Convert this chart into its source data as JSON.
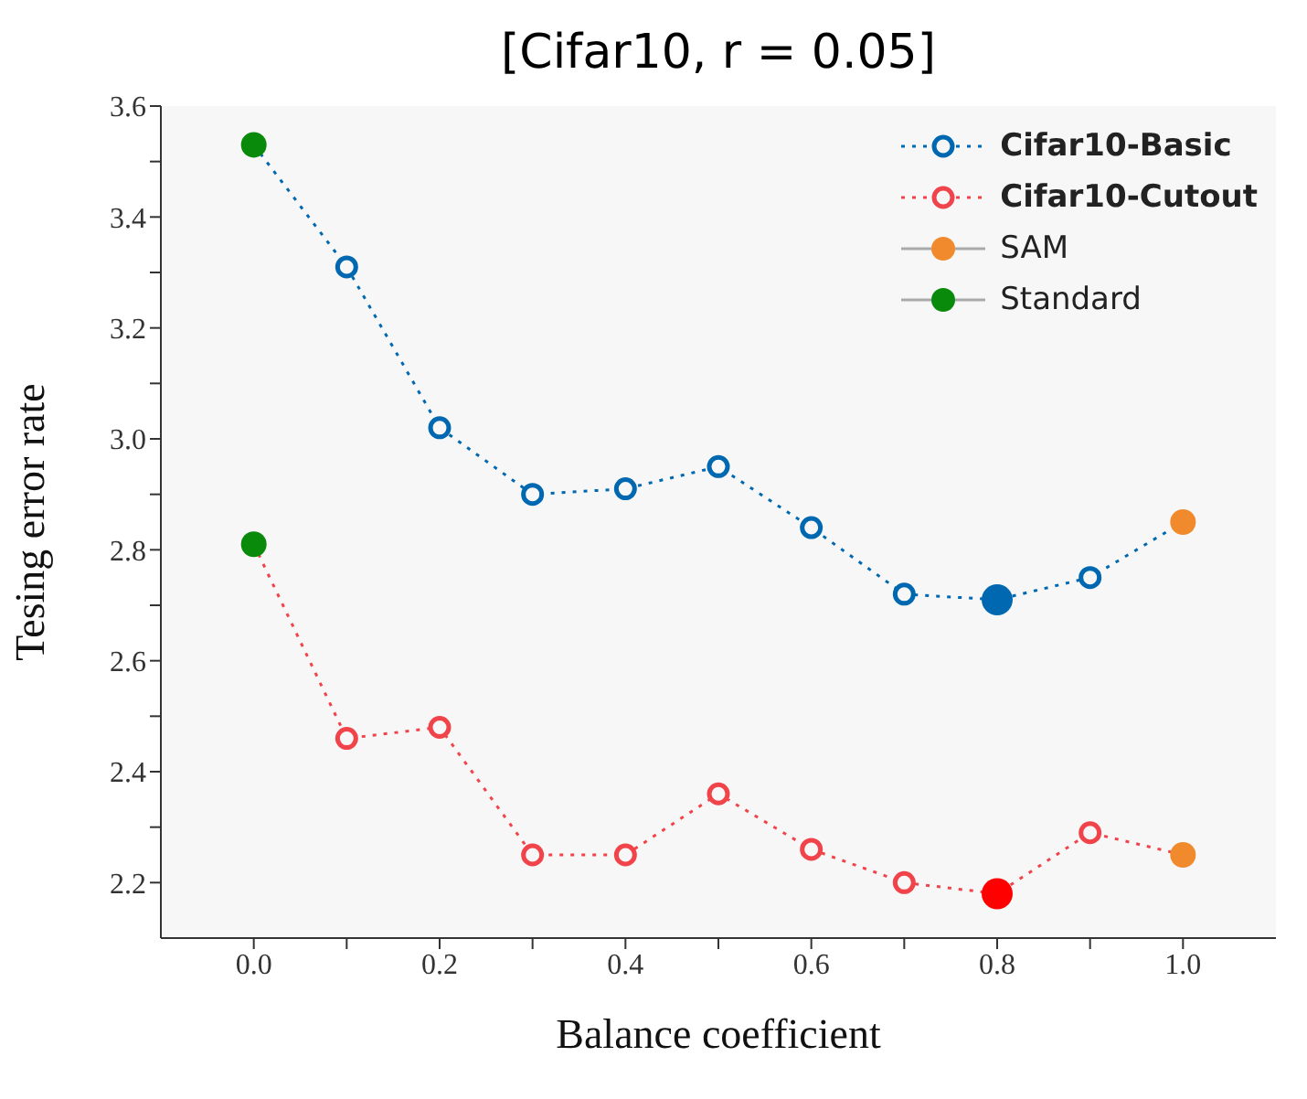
{
  "chart_data": {
    "type": "line",
    "title": "[Cifar10, r = 0.05]",
    "xlabel": "Balance coefficient",
    "ylabel": "Tesing error rate",
    "x": [
      0,
      0.1,
      0.2,
      0.3,
      0.4,
      0.5,
      0.6,
      0.7,
      0.8,
      0.9,
      1.0
    ],
    "series": [
      {
        "name": "Cifar10-Basic",
        "color": "#0068b0",
        "values": [
          3.53,
          3.31,
          3.02,
          2.9,
          2.91,
          2.95,
          2.84,
          2.72,
          2.71,
          2.75,
          2.85
        ],
        "line_style": "dotted",
        "marker": "circle"
      },
      {
        "name": "Cifar10-Cutout",
        "color": "#f0444a",
        "values": [
          2.81,
          2.46,
          2.48,
          2.25,
          2.25,
          2.36,
          2.26,
          2.2,
          2.18,
          2.29,
          2.25
        ],
        "line_style": "dotted",
        "marker": "circle"
      },
      {
        "name": "SAM",
        "type": "scatter",
        "color": "#f08a2c",
        "x": [
          1.0,
          1.0
        ],
        "values": [
          2.85,
          2.25
        ],
        "marker": "circle"
      },
      {
        "name": "Standard",
        "type": "scatter",
        "color": "#0a8a0a",
        "x": [
          0,
          0
        ],
        "values": [
          3.53,
          2.81
        ],
        "marker": "circle"
      },
      {
        "type": "scatter",
        "color": "#0068b0",
        "x": [
          0.8
        ],
        "values": [
          2.71
        ],
        "marker": "circle"
      },
      {
        "type": "scatter",
        "color": "#ff0000",
        "x": [
          0.8
        ],
        "values": [
          2.18
        ],
        "marker": "circle"
      }
    ],
    "xlim": [
      -0.1,
      1.1
    ],
    "xticks": [
      {
        "value": 0,
        "label": "0.0"
      },
      {
        "value": 0.1,
        "label": null
      },
      {
        "value": 0.2,
        "label": "0.2"
      },
      {
        "value": 0.3,
        "label": null
      },
      {
        "value": 0.4,
        "label": "0.4"
      },
      {
        "value": 0.5,
        "label": null
      },
      {
        "value": 0.6,
        "label": "0.6"
      },
      {
        "value": 0.7,
        "label": null
      },
      {
        "value": 0.8,
        "label": "0.8"
      },
      {
        "value": 0.9,
        "label": null
      },
      {
        "value": 1.0,
        "label": "1.0"
      }
    ],
    "ylim": [
      2.1,
      3.6
    ],
    "yticks": [
      {
        "value": 2.2,
        "label": "2.2"
      },
      {
        "value": 2.3,
        "label": null
      },
      {
        "value": 2.4,
        "label": "2.4"
      },
      {
        "value": 2.5,
        "label": null
      },
      {
        "value": 2.6,
        "label": "2.6"
      },
      {
        "value": 2.7,
        "label": null
      },
      {
        "value": 2.8,
        "label": "2.8"
      },
      {
        "value": 2.9,
        "label": null
      },
      {
        "value": 3.0,
        "label": "3.0"
      },
      {
        "value": 3.1,
        "label": null
      },
      {
        "value": 3.2,
        "label": "3.2"
      },
      {
        "value": 3.3,
        "label": null
      },
      {
        "value": 3.4,
        "label": "3.4"
      },
      {
        "value": 3.5,
        "label": null
      },
      {
        "value": 3.6,
        "label": "3.6"
      }
    ],
    "legend": "top right"
  }
}
